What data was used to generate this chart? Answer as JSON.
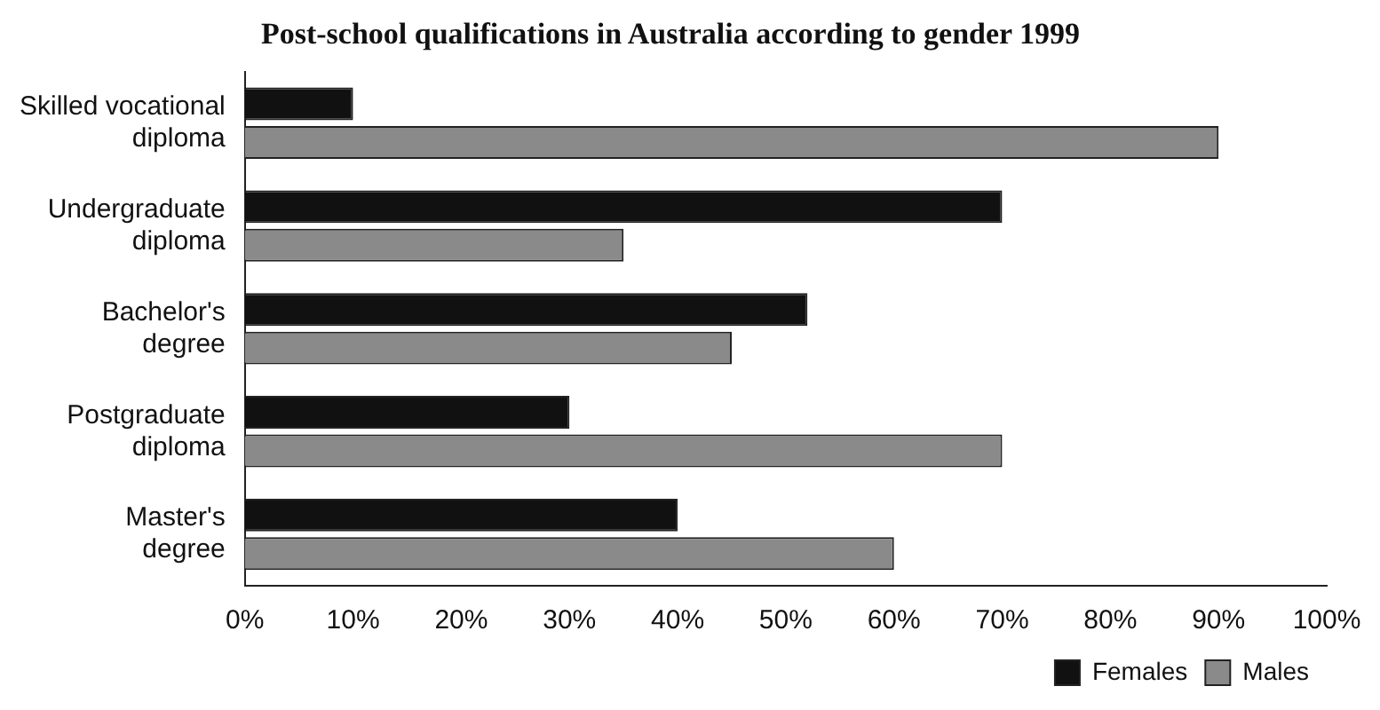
{
  "chart_data": {
    "type": "bar",
    "orientation": "horizontal",
    "title": "Post-school qualifications in Australia according to gender 1999",
    "categories": [
      "Skilled vocational diploma",
      "Undergraduate diploma",
      "Bachelor's degree",
      "Postgraduate diploma",
      "Master's degree"
    ],
    "series": [
      {
        "name": "Females",
        "color": "#111111",
        "values": [
          10,
          70,
          52,
          30,
          40
        ]
      },
      {
        "name": "Males",
        "color": "#8a8a8a",
        "values": [
          90,
          35,
          45,
          70,
          60
        ]
      }
    ],
    "xlim": [
      0,
      100
    ],
    "xticks": [
      {
        "value": 0,
        "label": "0%"
      },
      {
        "value": 10,
        "label": "10%"
      },
      {
        "value": 20,
        "label": "20%"
      },
      {
        "value": 30,
        "label": "30%"
      },
      {
        "value": 40,
        "label": "40%"
      },
      {
        "value": 50,
        "label": "50%"
      },
      {
        "value": 60,
        "label": "60%"
      },
      {
        "value": 70,
        "label": "70%"
      },
      {
        "value": 80,
        "label": "80%"
      },
      {
        "value": 90,
        "label": "90%"
      },
      {
        "value": 100,
        "label": "100%"
      }
    ],
    "grid": false,
    "legend": "bottom right"
  }
}
